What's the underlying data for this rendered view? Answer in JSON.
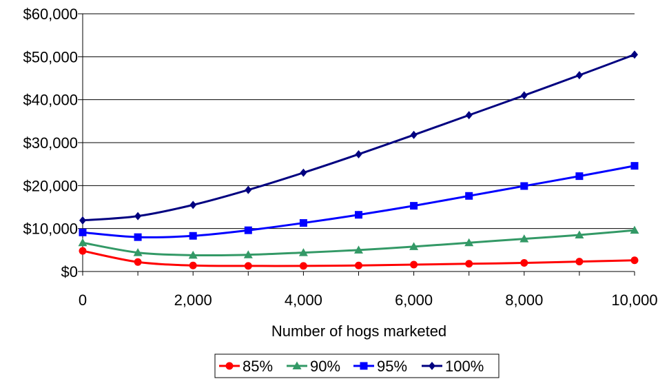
{
  "chart_data": {
    "type": "line",
    "title": "",
    "xlabel": "Number of hogs marketed",
    "ylabel": "",
    "x": [
      0,
      1000,
      2000,
      3000,
      4000,
      5000,
      6000,
      7000,
      8000,
      9000,
      10000
    ],
    "xlim": [
      0,
      10000
    ],
    "ylim": [
      0,
      60000
    ],
    "x_ticks": [
      0,
      2000,
      4000,
      6000,
      8000,
      10000
    ],
    "x_tick_labels": [
      "0",
      "2,000",
      "4,000",
      "6,000",
      "8,000",
      "10,000"
    ],
    "y_ticks": [
      0,
      10000,
      20000,
      30000,
      40000,
      50000,
      60000
    ],
    "y_tick_labels": [
      "$0",
      "$10,000",
      "$20,000",
      "$30,000",
      "$40,000",
      "$50,000",
      "$60,000"
    ],
    "grid": "horizontal",
    "legend_position": "bottom",
    "series": [
      {
        "name": "85%",
        "color": "#ff0000",
        "marker": "circle",
        "values": [
          4800,
          2200,
          1400,
          1300,
          1300,
          1400,
          1600,
          1800,
          2000,
          2300,
          2600
        ]
      },
      {
        "name": "90%",
        "color": "#339966",
        "marker": "triangle",
        "values": [
          6700,
          4400,
          3800,
          3900,
          4400,
          5000,
          5800,
          6700,
          7600,
          8500,
          9600
        ]
      },
      {
        "name": "95%",
        "color": "#0000ff",
        "marker": "square",
        "values": [
          9100,
          8000,
          8300,
          9600,
          11300,
          13200,
          15300,
          17600,
          19900,
          22200,
          24600
        ]
      },
      {
        "name": "100%",
        "color": "#000080",
        "marker": "diamond",
        "values": [
          11900,
          12900,
          15500,
          19000,
          23000,
          27300,
          31800,
          36400,
          41000,
          45700,
          50500
        ]
      }
    ]
  }
}
